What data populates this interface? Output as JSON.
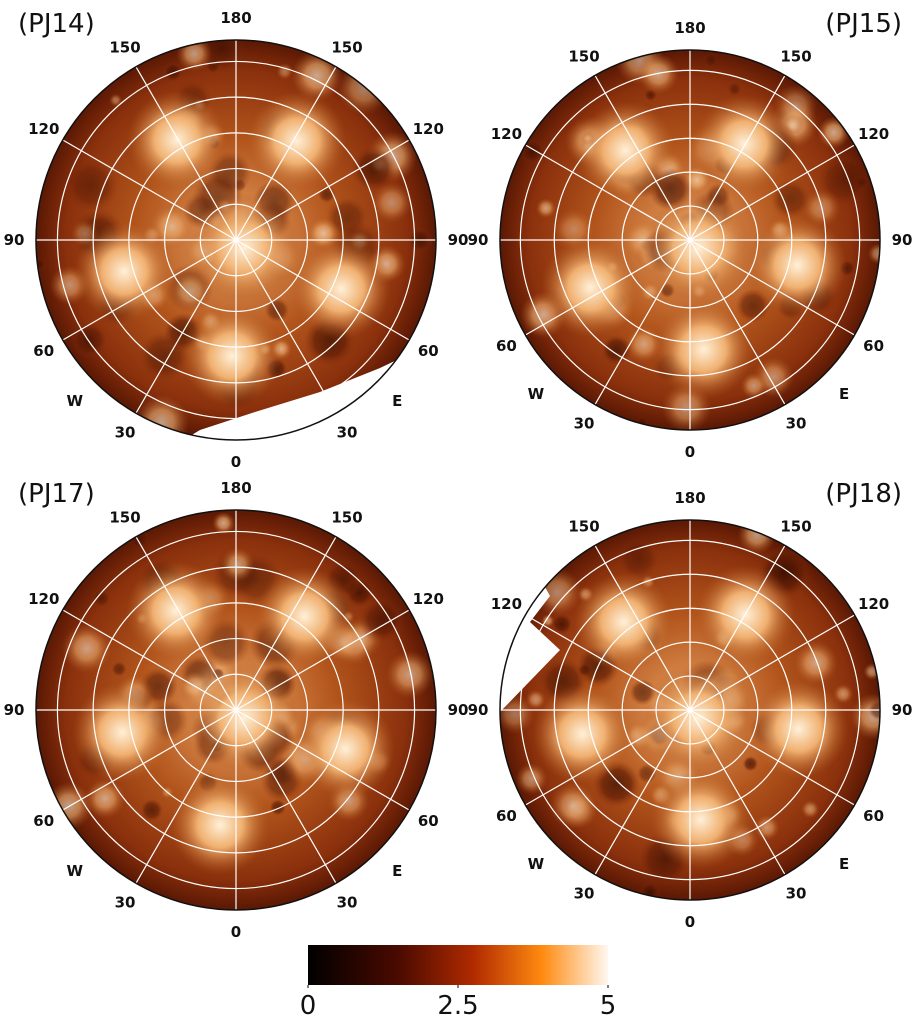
{
  "panels": [
    {
      "label": "(PJ14)"
    },
    {
      "label": "(PJ15)"
    },
    {
      "label": "(PJ17)"
    },
    {
      "label": "(PJ18)"
    }
  ],
  "grid_labels": [
    "180",
    "150",
    "150",
    "120",
    "120",
    "90",
    "90",
    "60",
    "60",
    "30",
    "30",
    "0",
    "W",
    "E"
  ],
  "colorbar": {
    "range": [
      0,
      5
    ],
    "ticks": [
      0,
      2.5,
      5
    ]
  }
}
